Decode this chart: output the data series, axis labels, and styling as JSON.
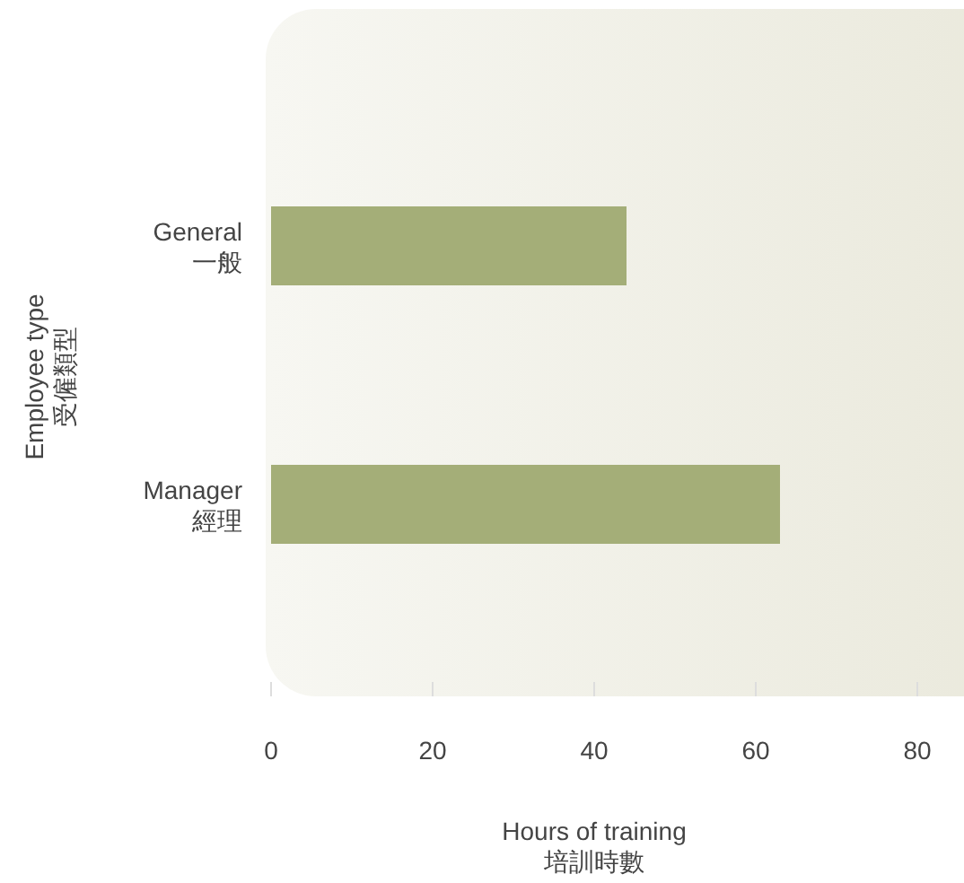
{
  "chart_data": {
    "type": "bar",
    "orientation": "horizontal",
    "categories": [
      "General\n一般",
      "Manager\n經理"
    ],
    "values": [
      44,
      63
    ],
    "color": "#a4ae78",
    "xlim": [
      0,
      86
    ],
    "xticks": [
      0,
      20,
      40,
      60,
      80
    ],
    "xlabel": "Hours of training\n培訓時數",
    "ylabel": "Employee type\n受僱類型",
    "grid": false
  }
}
